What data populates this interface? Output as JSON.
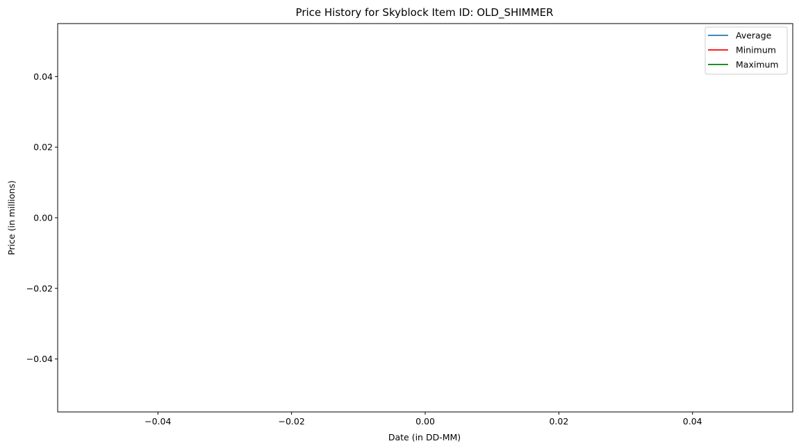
{
  "chart_data": {
    "type": "line",
    "title": "Price History for Skyblock Item ID: OLD_SHIMMER",
    "xlabel": "Date (in DD-MM)",
    "ylabel": "Price (in millions)",
    "xlim": [
      -0.055,
      0.055
    ],
    "ylim": [
      -0.055,
      0.055
    ],
    "x_ticks": [
      -0.04,
      -0.02,
      0.0,
      0.02,
      0.04
    ],
    "y_ticks": [
      -0.04,
      -0.02,
      0.0,
      0.02,
      0.04
    ],
    "x_tick_labels": [
      "−0.04",
      "−0.02",
      "0.00",
      "0.02",
      "0.04"
    ],
    "y_tick_labels": [
      "−0.04",
      "−0.02",
      "0.00",
      "0.02",
      "0.04"
    ],
    "grid": false,
    "legend_position": "top-right",
    "x": [],
    "series": [
      {
        "name": "Average",
        "color": "#1f77b4",
        "values": []
      },
      {
        "name": "Minimum",
        "color": "#ff0000",
        "values": []
      },
      {
        "name": "Maximum",
        "color": "#008000",
        "values": []
      }
    ]
  }
}
